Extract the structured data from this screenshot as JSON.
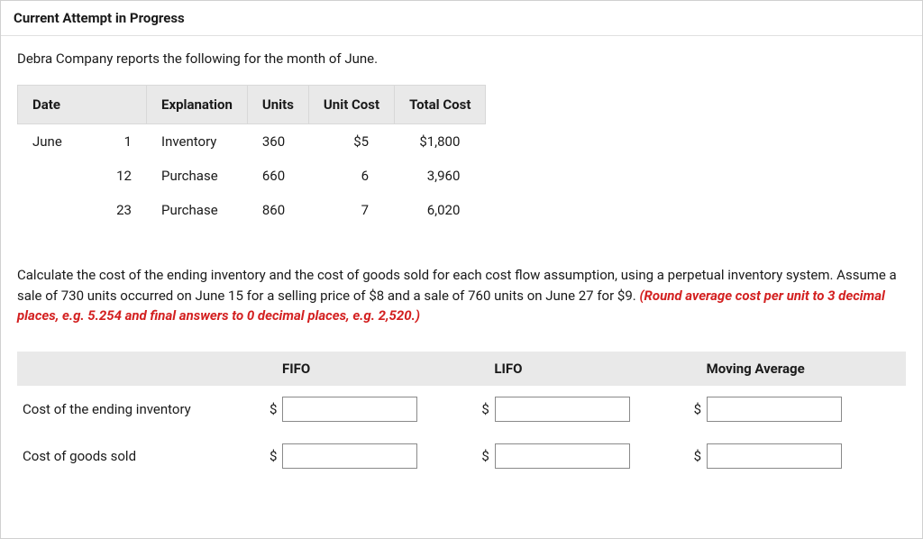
{
  "section_header": "Current Attempt in Progress",
  "intro_text": "Debra Company reports the following for the month of June.",
  "data_table": {
    "columns": {
      "date": "Date",
      "explanation": "Explanation",
      "units": "Units",
      "unit_cost": "Unit Cost",
      "total_cost": "Total Cost"
    },
    "rows": [
      {
        "month": "June",
        "day": "1",
        "explanation": "Inventory",
        "units": "360",
        "unit_cost": "$5",
        "total_cost": "$1,800"
      },
      {
        "month": "",
        "day": "12",
        "explanation": "Purchase",
        "units": "660",
        "unit_cost": "6",
        "total_cost": "3,960"
      },
      {
        "month": "",
        "day": "23",
        "explanation": "Purchase",
        "units": "860",
        "unit_cost": "7",
        "total_cost": "6,020"
      }
    ]
  },
  "instruction_main": "Calculate the cost of the ending inventory and the cost of goods sold for each cost flow assumption, using a perpetual inventory system. Assume a sale of 730 units occurred on June 15 for a selling price of $8 and a sale of 760 units on June 27 for $9. ",
  "instruction_round": "(Round average cost per unit to 3 decimal places, e.g. 5.254 and final answers to 0 decimal places, e.g. 2,520.)",
  "answer_table": {
    "headers": {
      "blank": "",
      "fifo": "FIFO",
      "lifo": "LIFO",
      "moving_avg": "Moving Average"
    },
    "rows": [
      {
        "label": "Cost of the ending inventory",
        "currency": "$"
      },
      {
        "label": "Cost of goods sold",
        "currency": "$"
      }
    ]
  },
  "colors": {
    "header_bg": "#e9e9e9",
    "border": "#d0d0d0",
    "round_note": "#d32020",
    "input_border": "#8a8a8a"
  }
}
